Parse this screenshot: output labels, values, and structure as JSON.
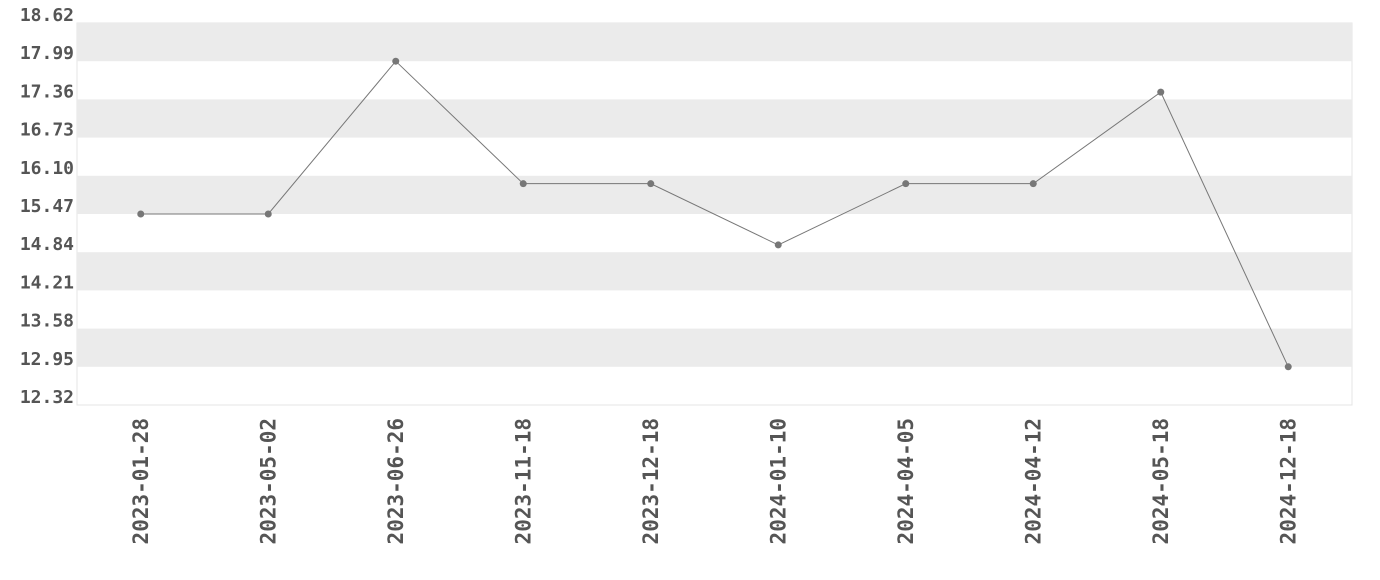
{
  "chart_data": {
    "type": "line",
    "color": "#777777",
    "categories": [
      "2023-01-28",
      "2023-05-02",
      "2023-06-26",
      "2023-11-18",
      "2023-12-18",
      "2024-01-10",
      "2024-04-05",
      "2024-04-12",
      "2024-05-18",
      "2024-12-18"
    ],
    "values": [
      15.47,
      15.47,
      17.99,
      15.97,
      15.97,
      14.96,
      15.97,
      15.97,
      17.48,
      12.95
    ],
    "ylim": [
      12.32,
      18.62
    ],
    "yticks": [
      12.32,
      12.95,
      13.58,
      14.21,
      14.84,
      15.47,
      {
        "value": 16.1,
        "label": "16.10"
      },
      16.73,
      17.36,
      17.99,
      18.62
    ],
    "grid": true
  }
}
